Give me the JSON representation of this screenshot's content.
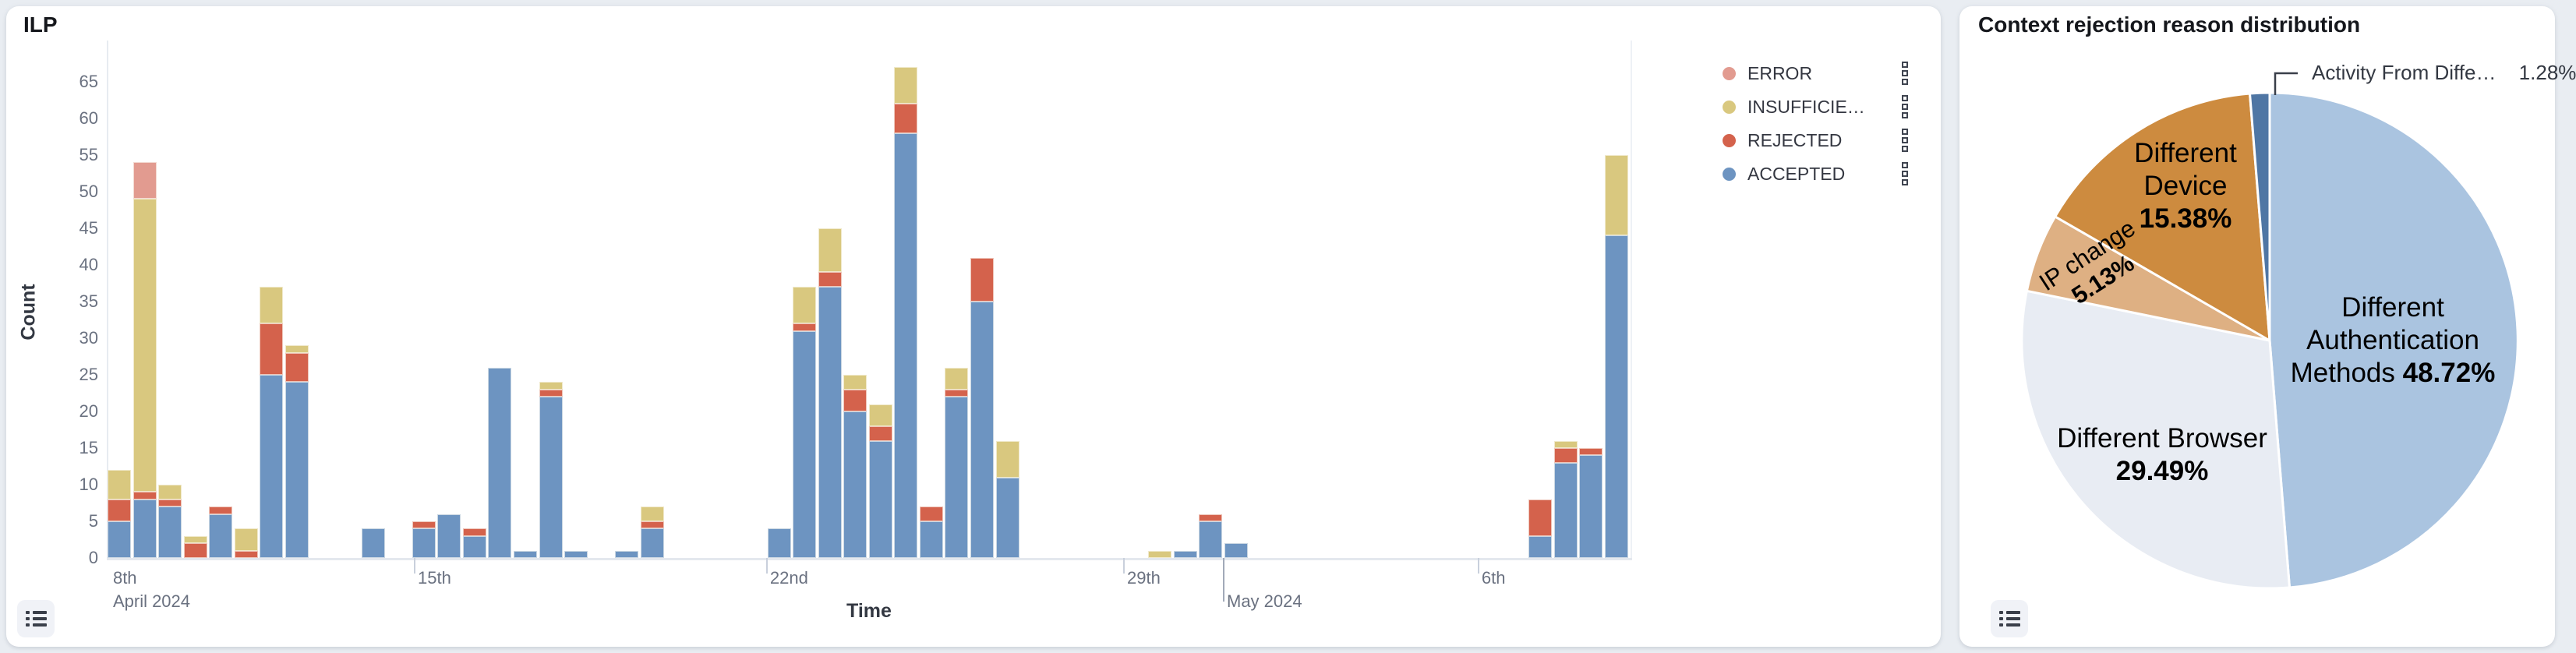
{
  "left_panel": {
    "title": "ILP",
    "y_axis_label": "Count",
    "x_axis_label": "Time",
    "legend": [
      {
        "key": "error",
        "label": "ERROR",
        "color": "#e29b90"
      },
      {
        "key": "insufficient",
        "label": "INSUFFICIE…",
        "color": "#d9c87f"
      },
      {
        "key": "rejected",
        "label": "REJECTED",
        "color": "#d4624c"
      },
      {
        "key": "accepted",
        "label": "ACCEPTED",
        "color": "#6d94c1"
      }
    ]
  },
  "right_panel": {
    "title": "Context rejection reason distribution"
  },
  "icons": {
    "panel_action": "list-icon",
    "legend_item_action": "kebab-squares-icon"
  },
  "chart_data": [
    {
      "type": "bar",
      "title": "ILP",
      "stacked": true,
      "xlabel": "Time",
      "ylabel": "Count",
      "ylim": [
        0,
        67
      ],
      "grid": false,
      "y_ticks": [
        0,
        5,
        10,
        15,
        20,
        25,
        30,
        35,
        40,
        45,
        50,
        55,
        60,
        65
      ],
      "stack_order": [
        "accepted",
        "rejected",
        "insufficient",
        "error"
      ],
      "colors": {
        "accepted": "#6d94c1",
        "rejected": "#d4624c",
        "insufficient": "#d9c87f",
        "error": "#e29b90"
      },
      "x_ticks": [
        {
          "label": "8th",
          "sublabel": "April 2024",
          "slot": 0.06,
          "mark": "none"
        },
        {
          "label": "15th",
          "slot": 12.07,
          "mark": "short"
        },
        {
          "label": "22nd",
          "slot": 25.95,
          "mark": "short"
        },
        {
          "label": "29th",
          "slot": 40.02,
          "mark": "short"
        },
        {
          "label": "May 2024",
          "slot": 43.95,
          "mark": "long",
          "second_row": true
        },
        {
          "label": "6th",
          "slot": 53.99,
          "mark": "short"
        }
      ],
      "end_gridline_slot": 60.0,
      "bars": [
        {
          "slot": 0,
          "accepted": 5,
          "rejected": 3,
          "insufficient": 4
        },
        {
          "slot": 1,
          "accepted": 8,
          "rejected": 1,
          "insufficient": 40,
          "error": 5
        },
        {
          "slot": 2,
          "accepted": 7,
          "rejected": 1,
          "insufficient": 2
        },
        {
          "slot": 3,
          "rejected": 2,
          "insufficient": 1
        },
        {
          "slot": 4,
          "accepted": 6,
          "rejected": 1
        },
        {
          "slot": 5,
          "rejected": 1,
          "insufficient": 3
        },
        {
          "slot": 6,
          "accepted": 25,
          "rejected": 7,
          "insufficient": 5
        },
        {
          "slot": 7,
          "accepted": 24,
          "rejected": 4,
          "insufficient": 1
        },
        {
          "slot": 10,
          "accepted": 4
        },
        {
          "slot": 12,
          "accepted": 4,
          "rejected": 1
        },
        {
          "slot": 13,
          "accepted": 6
        },
        {
          "slot": 14,
          "accepted": 3,
          "rejected": 1
        },
        {
          "slot": 15,
          "accepted": 26
        },
        {
          "slot": 16,
          "accepted": 1
        },
        {
          "slot": 17,
          "accepted": 22,
          "rejected": 1,
          "insufficient": 1
        },
        {
          "slot": 18,
          "accepted": 1
        },
        {
          "slot": 20,
          "accepted": 1
        },
        {
          "slot": 21,
          "accepted": 4,
          "rejected": 1,
          "insufficient": 2
        },
        {
          "slot": 26,
          "accepted": 4
        },
        {
          "slot": 27,
          "accepted": 31,
          "rejected": 1,
          "insufficient": 5
        },
        {
          "slot": 28,
          "accepted": 37,
          "rejected": 2,
          "insufficient": 6
        },
        {
          "slot": 29,
          "accepted": 20,
          "rejected": 3,
          "insufficient": 2
        },
        {
          "slot": 30,
          "accepted": 16,
          "rejected": 2,
          "insufficient": 3
        },
        {
          "slot": 31,
          "accepted": 58,
          "rejected": 4,
          "insufficient": 5
        },
        {
          "slot": 32,
          "accepted": 5,
          "rejected": 2
        },
        {
          "slot": 33,
          "accepted": 22,
          "rejected": 1,
          "insufficient": 3
        },
        {
          "slot": 34,
          "accepted": 35,
          "rejected": 6
        },
        {
          "slot": 35,
          "accepted": 11,
          "insufficient": 5
        },
        {
          "slot": 41,
          "insufficient": 1
        },
        {
          "slot": 42,
          "accepted": 1
        },
        {
          "slot": 43,
          "accepted": 5,
          "rejected": 1
        },
        {
          "slot": 44,
          "accepted": 2
        },
        {
          "slot": 56,
          "accepted": 3,
          "rejected": 5
        },
        {
          "slot": 57,
          "accepted": 13,
          "rejected": 2,
          "insufficient": 1
        },
        {
          "slot": 58,
          "accepted": 14,
          "rejected": 1
        },
        {
          "slot": 59,
          "accepted": 44,
          "insufficient": 11
        }
      ]
    },
    {
      "type": "pie",
      "title": "Context rejection reason distribution",
      "legend_position": "none",
      "slices": [
        {
          "key": "dam",
          "label_lines": [
            "Different",
            "Authentication",
            "Methods"
          ],
          "pct": 48.72,
          "pct_label": "48.72%",
          "pct_inline": true,
          "color": "#aac4e0"
        },
        {
          "key": "browser",
          "label_lines": [
            "Different Browser"
          ],
          "pct": 29.49,
          "pct_label": "29.49%",
          "pct_inline": false,
          "color": "#e8ecf3"
        },
        {
          "key": "ip",
          "label_lines": [
            "IP change"
          ],
          "pct": 5.13,
          "pct_label": "5.13%",
          "pct_inline": false,
          "color": "#deb083"
        },
        {
          "key": "device",
          "label_lines": [
            "Different",
            "Device"
          ],
          "pct": 15.38,
          "pct_label": "15.38%",
          "pct_inline": false,
          "color": "#cd8b3f"
        },
        {
          "key": "activity",
          "label_lines": [
            "Activity From Diffe…"
          ],
          "pct": 1.28,
          "pct_label": "1.28%",
          "pct_inline": true,
          "color": "#4f76a4"
        }
      ]
    }
  ]
}
